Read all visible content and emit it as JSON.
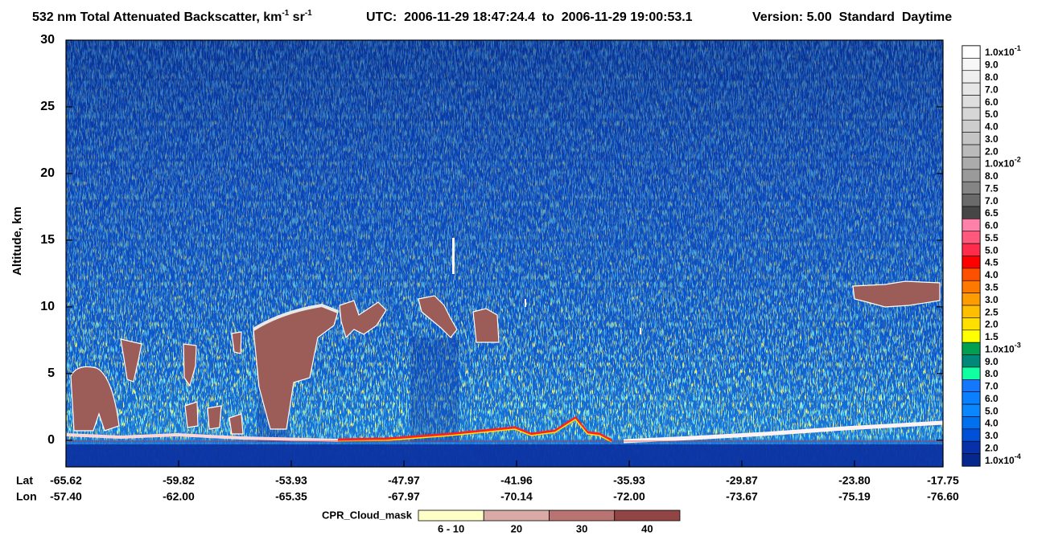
{
  "chart_data": {
    "type": "curtain",
    "title": [
      "532 nm Total Attenuated Backscatter, km",
      "-1",
      " sr",
      "-1"
    ],
    "time_range": "UTC:  2006-11-29 18:47:24.4  to  2006-11-29 19:00:53.1",
    "version": "Version: 5.00  Standard  Daytime",
    "ylabel": "Altitude, km",
    "ylim": [
      -2,
      30
    ],
    "yticks": [
      0,
      5,
      10,
      15,
      20,
      25,
      30
    ],
    "x_rows": [
      {
        "name": "Lat",
        "labels": [
          "-65.62",
          "-59.82",
          "-53.93",
          "-47.97",
          "-41.96",
          "-35.93",
          "-29.87",
          "-23.80",
          "-17.75"
        ]
      },
      {
        "name": "Lon",
        "labels": [
          "-57.40",
          "-62.00",
          "-65.35",
          "-67.97",
          "-70.14",
          "-72.00",
          "-73.67",
          "-75.19",
          "-76.60"
        ]
      }
    ],
    "colorscale": [
      {
        "value": 0.1,
        "label": "1.0x10",
        "exponent": "-1",
        "color": "#ffffff"
      },
      {
        "value": 0.09,
        "label": "9.0",
        "color": "#f7f7f7"
      },
      {
        "value": 0.08,
        "label": "8.0",
        "color": "#efefef"
      },
      {
        "value": 0.07,
        "label": "7.0",
        "color": "#e6e6e6"
      },
      {
        "value": 0.06,
        "label": "6.0",
        "color": "#dedede"
      },
      {
        "value": 0.05,
        "label": "5.0",
        "color": "#d6d6d6"
      },
      {
        "value": 0.04,
        "label": "4.0",
        "color": "#cdcdcd"
      },
      {
        "value": 0.03,
        "label": "3.0",
        "color": "#c4c4c4"
      },
      {
        "value": 0.02,
        "label": "2.0",
        "color": "#bababa"
      },
      {
        "value": 0.01,
        "label": "1.0x10",
        "exponent": "-2",
        "color": "#ababab"
      },
      {
        "value": 0.008,
        "label": "8.0",
        "color": "#9a9a9a"
      },
      {
        "value": 0.0075,
        "label": "7.5",
        "color": "#858585"
      },
      {
        "value": 0.007,
        "label": "7.0",
        "color": "#6a6a6a"
      },
      {
        "value": 0.0065,
        "label": "6.5",
        "color": "#464646"
      },
      {
        "value": 0.006,
        "label": "6.0",
        "color": "#ff80a8"
      },
      {
        "value": 0.0055,
        "label": "5.5",
        "color": "#ff5a7c"
      },
      {
        "value": 0.005,
        "label": "5.0",
        "color": "#ff2c4c"
      },
      {
        "value": 0.0045,
        "label": "4.5",
        "color": "#ff0000"
      },
      {
        "value": 0.004,
        "label": "4.0",
        "color": "#ff5000"
      },
      {
        "value": 0.0035,
        "label": "3.5",
        "color": "#ff7800"
      },
      {
        "value": 0.003,
        "label": "3.0",
        "color": "#ff9c00"
      },
      {
        "value": 0.0025,
        "label": "2.5",
        "color": "#ffbe00"
      },
      {
        "value": 0.002,
        "label": "2.0",
        "color": "#ffe000"
      },
      {
        "value": 0.0015,
        "label": "1.5",
        "color": "#ffff00"
      },
      {
        "value": 0.001,
        "label": "1.0x10",
        "exponent": "-3",
        "color": "#00a050"
      },
      {
        "value": 0.0009,
        "label": "9.0",
        "color": "#008878"
      },
      {
        "value": 0.0008,
        "label": "8.0",
        "color": "#10ffa0"
      },
      {
        "value": 0.0007,
        "label": "7.0",
        "color": "#1478ff"
      },
      {
        "value": 0.0006,
        "label": "6.0",
        "color": "#0a80ff"
      },
      {
        "value": 0.0005,
        "label": "5.0",
        "color": "#0a86ff"
      },
      {
        "value": 0.0004,
        "label": "4.0",
        "color": "#0070f0"
      },
      {
        "value": 0.0003,
        "label": "3.0",
        "color": "#0050d8"
      },
      {
        "value": 0.0002,
        "label": "2.0",
        "color": "#0830a8"
      },
      {
        "value": 0.0001,
        "label": "1.0x10",
        "exponent": "-4",
        "color": "#06288e"
      }
    ],
    "cpr_cloud_mask": {
      "title": "CPR_Cloud_mask",
      "classes": [
        {
          "label": "6 - 10",
          "color": "#ffffc8"
        },
        {
          "label": "20",
          "color": "#d9aaa6"
        },
        {
          "label": "30",
          "color": "#b97472"
        },
        {
          "label": "40",
          "color": "#924545"
        }
      ]
    }
  }
}
